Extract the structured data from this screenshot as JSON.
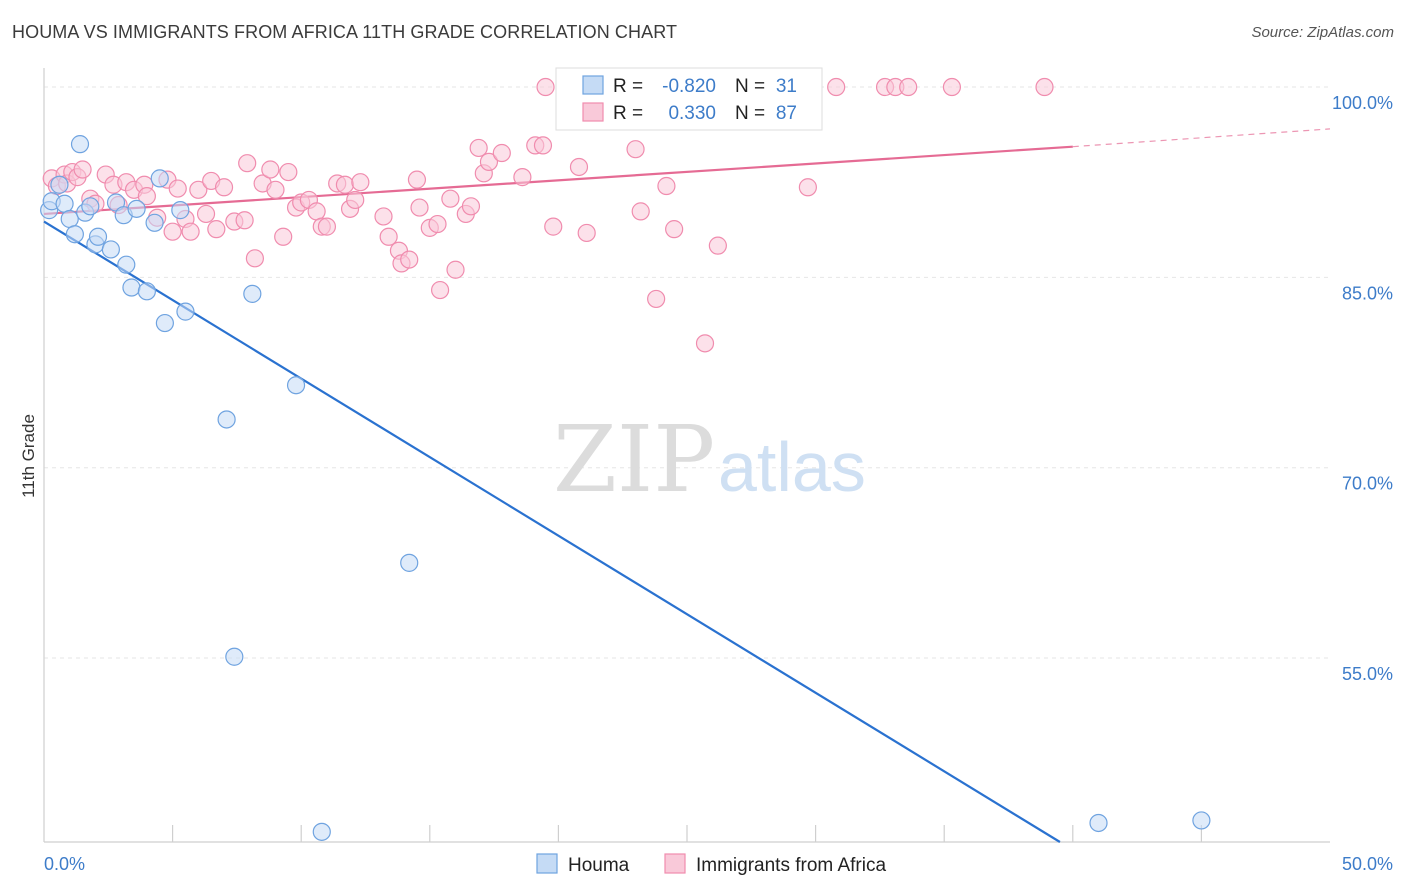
{
  "title": "HOUMA VS IMMIGRANTS FROM AFRICA 11TH GRADE CORRELATION CHART",
  "source": "Source: ZipAtlas.com",
  "watermark": {
    "zip": "ZIP",
    "atlas": "atlas"
  },
  "chart_data": {
    "type": "scatter",
    "xlabel": "",
    "ylabel": "11th Grade",
    "xlim": [
      0,
      50
    ],
    "ylim": [
      40.5,
      101.5
    ],
    "x_tick_labels": [
      {
        "value": 0,
        "label": "0.0%"
      },
      {
        "value": 50,
        "label": "50.0%"
      }
    ],
    "x_minor_ticks": [
      5,
      10,
      15,
      20,
      25,
      30,
      35,
      40,
      45
    ],
    "y_ticks": [
      {
        "value": 100,
        "label": "100.0%"
      },
      {
        "value": 85,
        "label": "85.0%"
      },
      {
        "value": 70,
        "label": "70.0%"
      },
      {
        "value": 55,
        "label": "55.0%"
      }
    ],
    "grid": true,
    "legend_position": "bottom-center",
    "stats_box": [
      {
        "r_label": "R =",
        "r_value": "-0.820",
        "n_label": "N =",
        "n_value": "31"
      },
      {
        "r_label": "R =",
        "r_value": "0.330",
        "n_label": "N =",
        "n_value": "87"
      }
    ],
    "series": [
      {
        "name": "Houma",
        "color": "#6fa3e0",
        "fill": "#c5dbf5",
        "line_color": "#2a72d0",
        "trend": {
          "x0": 0,
          "y0": 89.4,
          "x1": 39.5,
          "y1": 40.5,
          "dashed_to": null
        },
        "points": [
          [
            0.2,
            90.3
          ],
          [
            0.3,
            91.0
          ],
          [
            0.6,
            92.3
          ],
          [
            0.8,
            90.8
          ],
          [
            1.0,
            89.6
          ],
          [
            1.2,
            88.4
          ],
          [
            1.4,
            95.5
          ],
          [
            1.6,
            90.1
          ],
          [
            1.8,
            90.6
          ],
          [
            2.0,
            87.6
          ],
          [
            2.1,
            88.2
          ],
          [
            2.6,
            87.2
          ],
          [
            2.8,
            90.9
          ],
          [
            3.1,
            89.9
          ],
          [
            3.2,
            86.0
          ],
          [
            3.4,
            84.2
          ],
          [
            3.6,
            90.4
          ],
          [
            4.0,
            83.9
          ],
          [
            4.3,
            89.3
          ],
          [
            4.5,
            92.8
          ],
          [
            4.7,
            81.4
          ],
          [
            5.3,
            90.3
          ],
          [
            5.5,
            82.3
          ],
          [
            7.1,
            73.8
          ],
          [
            7.4,
            55.1
          ],
          [
            8.1,
            83.7
          ],
          [
            9.8,
            76.5
          ],
          [
            10.8,
            41.3
          ],
          [
            14.2,
            62.5
          ],
          [
            41.0,
            42.0
          ],
          [
            45.0,
            42.2
          ]
        ]
      },
      {
        "name": "Immigrants from Africa",
        "color": "#f08cae",
        "fill": "#f9c9d9",
        "line_color": "#e56b94",
        "trend": {
          "x0": 0,
          "y0": 90.0,
          "x1": 40.0,
          "y1": 95.3,
          "dashed_to": {
            "x": 50,
            "y": 96.7
          }
        },
        "points": [
          [
            0.3,
            92.8
          ],
          [
            0.5,
            92.2
          ],
          [
            0.8,
            93.1
          ],
          [
            0.9,
            92.4
          ],
          [
            1.1,
            93.3
          ],
          [
            1.3,
            92.9
          ],
          [
            1.5,
            93.5
          ],
          [
            1.8,
            91.2
          ],
          [
            2.0,
            90.8
          ],
          [
            2.4,
            93.1
          ],
          [
            2.7,
            92.3
          ],
          [
            2.9,
            90.7
          ],
          [
            3.2,
            92.5
          ],
          [
            3.5,
            91.9
          ],
          [
            3.9,
            92.3
          ],
          [
            4.0,
            91.4
          ],
          [
            4.4,
            89.7
          ],
          [
            4.8,
            92.7
          ],
          [
            5.0,
            88.6
          ],
          [
            5.2,
            92.0
          ],
          [
            5.5,
            89.6
          ],
          [
            5.7,
            88.6
          ],
          [
            6.0,
            91.9
          ],
          [
            6.3,
            90.0
          ],
          [
            6.5,
            92.6
          ],
          [
            6.7,
            88.8
          ],
          [
            7.0,
            92.1
          ],
          [
            7.4,
            89.4
          ],
          [
            7.8,
            89.5
          ],
          [
            7.9,
            94.0
          ],
          [
            8.2,
            86.5
          ],
          [
            8.5,
            92.4
          ],
          [
            8.8,
            93.5
          ],
          [
            9.0,
            91.9
          ],
          [
            9.3,
            88.2
          ],
          [
            9.5,
            93.3
          ],
          [
            9.8,
            90.5
          ],
          [
            10.0,
            90.9
          ],
          [
            10.3,
            91.1
          ],
          [
            10.6,
            90.2
          ],
          [
            10.8,
            89.0
          ],
          [
            11.0,
            89.0
          ],
          [
            11.4,
            92.4
          ],
          [
            11.7,
            92.3
          ],
          [
            11.9,
            90.4
          ],
          [
            12.1,
            91.1
          ],
          [
            12.3,
            92.5
          ],
          [
            13.2,
            89.8
          ],
          [
            13.4,
            88.2
          ],
          [
            13.8,
            87.1
          ],
          [
            13.9,
            86.1
          ],
          [
            14.2,
            86.4
          ],
          [
            14.5,
            92.7
          ],
          [
            14.6,
            90.5
          ],
          [
            15.0,
            88.9
          ],
          [
            15.3,
            89.2
          ],
          [
            15.4,
            84.0
          ],
          [
            15.8,
            91.2
          ],
          [
            16.0,
            85.6
          ],
          [
            16.4,
            90.0
          ],
          [
            16.6,
            90.6
          ],
          [
            16.9,
            95.2
          ],
          [
            17.1,
            93.2
          ],
          [
            17.3,
            94.1
          ],
          [
            17.8,
            94.8
          ],
          [
            18.6,
            92.9
          ],
          [
            19.1,
            95.4
          ],
          [
            19.4,
            95.4
          ],
          [
            19.5,
            100.0
          ],
          [
            19.8,
            89.0
          ],
          [
            20.8,
            93.7
          ],
          [
            21.1,
            88.5
          ],
          [
            23.0,
            95.1
          ],
          [
            23.2,
            90.2
          ],
          [
            23.8,
            83.3
          ],
          [
            24.2,
            92.2
          ],
          [
            24.5,
            88.8
          ],
          [
            25.7,
            79.8
          ],
          [
            26.2,
            87.5
          ],
          [
            29.7,
            92.1
          ],
          [
            30.8,
            100.0
          ],
          [
            32.7,
            100.0
          ],
          [
            33.1,
            100.0
          ],
          [
            33.6,
            100.0
          ],
          [
            35.3,
            100.0
          ],
          [
            38.9,
            100.0
          ],
          [
            23.5,
            100.0
          ]
        ]
      }
    ]
  },
  "legend": {
    "items": [
      {
        "label": "Houma"
      },
      {
        "label": "Immigrants from Africa"
      }
    ]
  }
}
